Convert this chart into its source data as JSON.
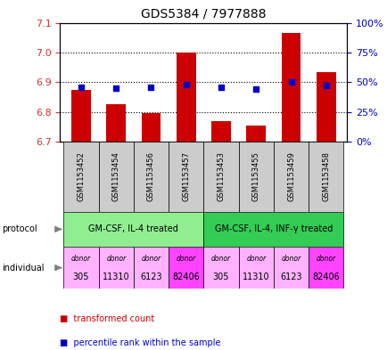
{
  "title": "GDS5384 / 7977888",
  "samples": [
    "GSM1153452",
    "GSM1153454",
    "GSM1153456",
    "GSM1153457",
    "GSM1153453",
    "GSM1153455",
    "GSM1153459",
    "GSM1153458"
  ],
  "bar_values": [
    6.875,
    6.825,
    6.795,
    7.0,
    6.77,
    6.755,
    7.065,
    6.935
  ],
  "percentile_values": [
    46,
    45,
    46,
    48,
    46,
    44,
    50,
    47
  ],
  "ylim_left": [
    6.7,
    7.1
  ],
  "ylim_right": [
    0,
    100
  ],
  "yticks_left": [
    6.7,
    6.8,
    6.9,
    7.0,
    7.1
  ],
  "yticks_right": [
    0,
    25,
    50,
    75,
    100
  ],
  "protocol_groups": [
    {
      "label": "GM-CSF, IL-4 treated",
      "color": "#90EE90",
      "start": 0,
      "end": 3
    },
    {
      "label": "GM-CSF, IL-4, INF-γ treated",
      "color": "#33CC55",
      "start": 4,
      "end": 7
    }
  ],
  "individuals": [
    "305",
    "11310",
    "6123",
    "82406",
    "305",
    "11310",
    "6123",
    "82406"
  ],
  "individual_colors": [
    "#FFB3FF",
    "#FFB3FF",
    "#FFB3FF",
    "#FF44FF",
    "#FFB3FF",
    "#FFB3FF",
    "#FFB3FF",
    "#FF44FF"
  ],
  "bar_color": "#CC0000",
  "percentile_color": "#0000CC",
  "bar_bottom": 6.7,
  "left_ycolor": "#CC3333",
  "right_ycolor": "#0000CC",
  "sample_box_color": "#CCCCCC",
  "grid_lines": [
    6.8,
    6.9,
    7.0
  ]
}
